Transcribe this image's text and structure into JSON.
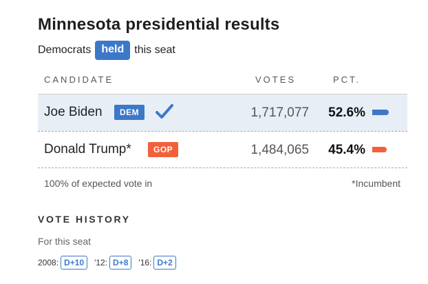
{
  "title": "Minnesota presidential results",
  "subtitle": {
    "prefix": "Democrats",
    "badge": "held",
    "suffix": "this seat"
  },
  "columns": {
    "candidate": "CANDIDATE",
    "votes": "VOTES",
    "pct": "PCT."
  },
  "candidates": [
    {
      "name": "Joe Biden",
      "party": "DEM",
      "votes": "1,717,077",
      "pct": "52.6%",
      "pct_value": 52.6,
      "winner": true,
      "color": "#3c78c8"
    },
    {
      "name": "Donald Trump*",
      "party": "GOP",
      "votes": "1,484,065",
      "pct": "45.4%",
      "pct_value": 45.4,
      "winner": false,
      "color": "#f2603b"
    }
  ],
  "footer": {
    "reporting": "100% of expected vote in",
    "note": "*Incumbent"
  },
  "history": {
    "heading": "VOTE HISTORY",
    "sub": "For this seat",
    "items": [
      {
        "label": "2008:",
        "value": "D+10"
      },
      {
        "label": "'12:",
        "value": "D+8"
      },
      {
        "label": "'16:",
        "value": "D+2"
      }
    ]
  },
  "icons": {
    "winner": "checkmark-icon"
  }
}
